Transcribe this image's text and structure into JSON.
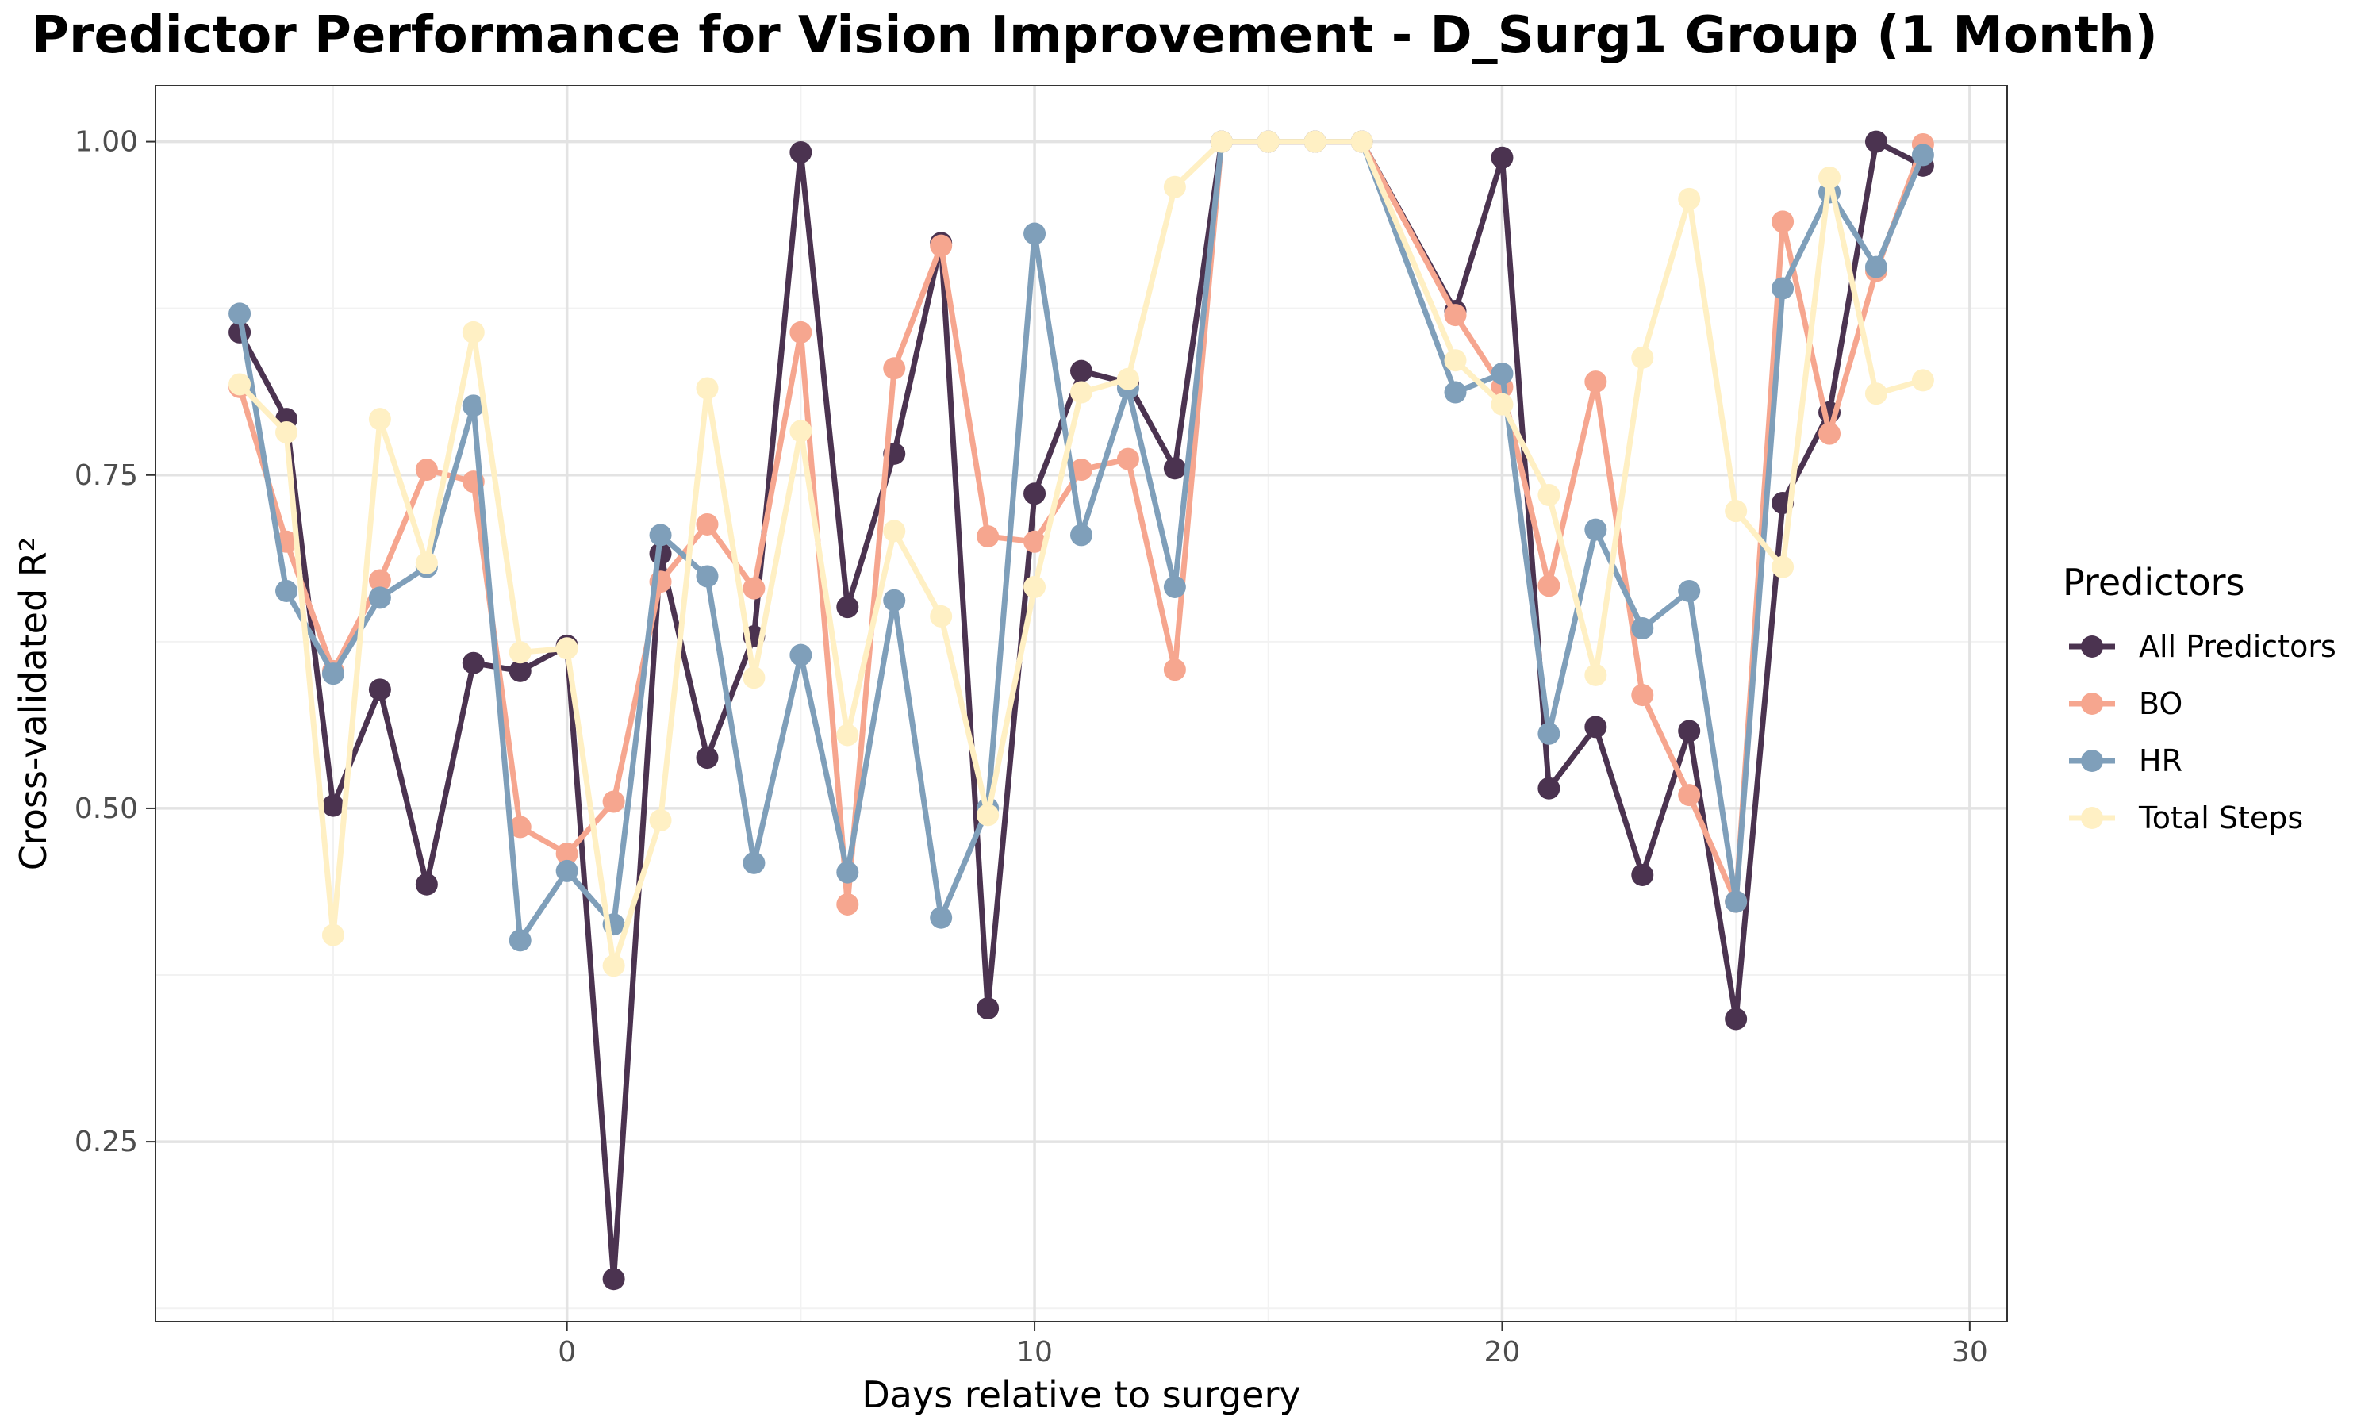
{
  "chart_data": {
    "type": "line",
    "title": "Predictor Performance for Vision Improvement - D_Surg1 Group (1 Month)",
    "xlabel": "Days relative to surgery",
    "ylabel": "Cross-validated R²",
    "xlim": [
      -8.8,
      30.8
    ],
    "ylim": [
      0.115,
      1.042
    ],
    "x_ticks": [
      0,
      10,
      20,
      30
    ],
    "y_ticks": [
      0.25,
      0.5,
      0.75,
      1.0
    ],
    "x_tick_labels": [
      "0",
      "10",
      "20",
      "30"
    ],
    "y_tick_labels": [
      "0.25",
      "0.50",
      "0.75",
      "1.00"
    ],
    "grid": true,
    "legend": {
      "title": "Predictors",
      "position": "right"
    },
    "x": [
      -7,
      -6,
      -5,
      -4,
      -3,
      -2,
      -1,
      0,
      1,
      2,
      3,
      4,
      5,
      6,
      7,
      8,
      9,
      10,
      11,
      12,
      13,
      14,
      15,
      16,
      17,
      19,
      20,
      21,
      22,
      23,
      24,
      25,
      26,
      27,
      28,
      29
    ],
    "series": [
      {
        "name": "All Predictors",
        "color": "#4b3350",
        "values": [
          0.857,
          0.792,
          0.502,
          0.589,
          0.443,
          0.609,
          0.603,
          0.622,
          0.147,
          0.691,
          0.538,
          0.629,
          0.992,
          0.651,
          0.766,
          0.924,
          0.35,
          0.736,
          0.828,
          0.819,
          0.755,
          1.0,
          1.0,
          1.0,
          1.0,
          0.873,
          0.988,
          0.515,
          0.561,
          0.45,
          0.558,
          0.342,
          0.729,
          0.797,
          1.0,
          0.982
        ]
      },
      {
        "name": "BO",
        "color": "#f6a68f",
        "values": [
          0.816,
          0.7,
          0.603,
          0.671,
          0.754,
          0.745,
          0.486,
          0.466,
          0.505,
          0.67,
          0.713,
          0.665,
          0.857,
          0.428,
          0.83,
          0.922,
          0.704,
          0.7,
          0.754,
          0.762,
          0.604,
          1.0,
          1.0,
          1.0,
          1.0,
          0.87,
          0.816,
          0.667,
          0.82,
          0.585,
          0.51,
          0.43,
          0.94,
          0.781,
          0.903,
          0.998
        ]
      },
      {
        "name": "HR",
        "color": "#7f9fba",
        "values": [
          0.871,
          0.663,
          0.601,
          0.658,
          0.681,
          0.802,
          0.401,
          0.453,
          0.413,
          0.705,
          0.674,
          0.459,
          0.615,
          0.452,
          0.656,
          0.418,
          0.5,
          0.931,
          0.705,
          0.815,
          0.666,
          1.0,
          1.0,
          1.0,
          1.0,
          0.812,
          0.826,
          0.556,
          0.709,
          0.635,
          0.663,
          0.43,
          0.89,
          0.962,
          0.906,
          0.99
        ]
      },
      {
        "name": "Total Steps",
        "color": "#fff0c4",
        "values": [
          0.818,
          0.782,
          0.405,
          0.792,
          0.684,
          0.857,
          0.617,
          0.62,
          0.382,
          0.491,
          0.815,
          0.598,
          0.783,
          0.555,
          0.708,
          0.644,
          0.495,
          0.666,
          0.812,
          0.822,
          0.966,
          1.0,
          1.0,
          1.0,
          1.0,
          0.836,
          0.803,
          0.735,
          0.6,
          0.838,
          0.957,
          0.723,
          0.681,
          0.973,
          0.811,
          0.821
        ]
      }
    ]
  }
}
